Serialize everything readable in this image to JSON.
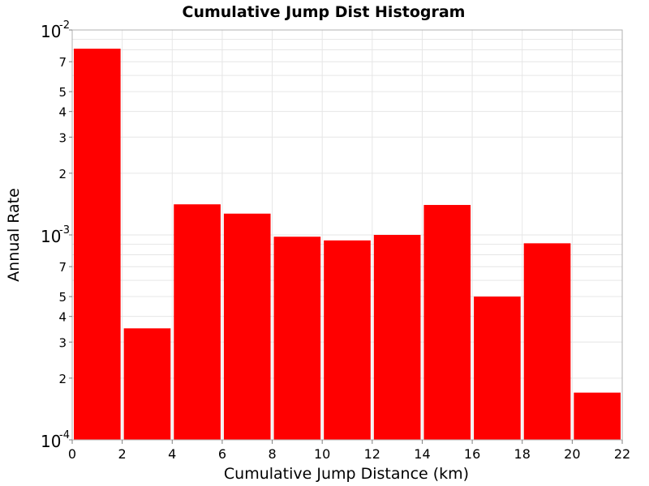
{
  "chart_data": {
    "type": "bar",
    "title": "Cumulative Jump Dist Histogram",
    "xlabel": "Cumulative Jump Distance (km)",
    "ylabel": "Annual Rate",
    "y_scale": "log",
    "xlim": [
      0,
      22
    ],
    "ylim": [
      0.0001,
      0.01
    ],
    "bar_color": "#ff0000",
    "grid": true,
    "x_ticks": [
      "0",
      "2",
      "4",
      "6",
      "8",
      "10",
      "12",
      "14",
      "16",
      "18",
      "20",
      "22"
    ],
    "y_major_ticks": [
      {
        "value": 0.01,
        "base": "10",
        "exponent": "-2"
      },
      {
        "value": 0.001,
        "base": "10",
        "exponent": "-3"
      },
      {
        "value": 0.0001,
        "base": "10",
        "exponent": "-4"
      }
    ],
    "y_minor_labels": [
      "2",
      "3",
      "4",
      "5",
      "7"
    ],
    "bins": [
      {
        "x0": 0,
        "x1": 2,
        "value": 0.0081
      },
      {
        "x0": 2,
        "x1": 4,
        "value": 0.00035
      },
      {
        "x0": 4,
        "x1": 6,
        "value": 0.00141
      },
      {
        "x0": 6,
        "x1": 8,
        "value": 0.00127
      },
      {
        "x0": 8,
        "x1": 10,
        "value": 0.00098
      },
      {
        "x0": 10,
        "x1": 12,
        "value": 0.00094
      },
      {
        "x0": 12,
        "x1": 14,
        "value": 0.001
      },
      {
        "x0": 14,
        "x1": 16,
        "value": 0.0014
      },
      {
        "x0": 16,
        "x1": 18,
        "value": 0.0005
      },
      {
        "x0": 18,
        "x1": 20,
        "value": 0.00091
      },
      {
        "x0": 20,
        "x1": 22,
        "value": 0.00017
      }
    ]
  }
}
